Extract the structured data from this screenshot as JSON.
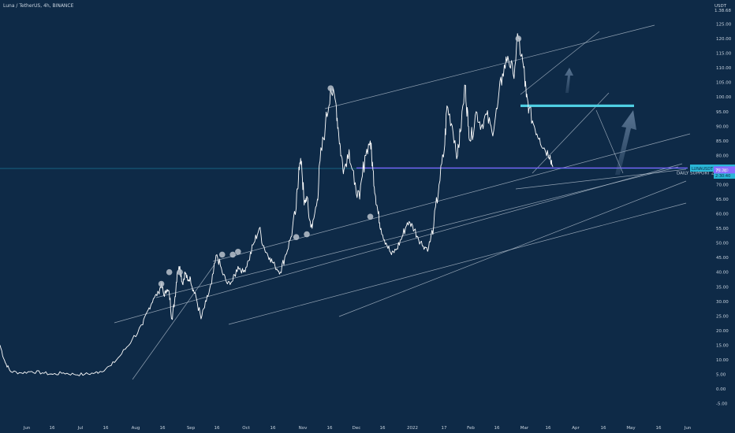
{
  "header": {
    "title": "Luna / TetherUS, 4h, BINANCE"
  },
  "chart_data": {
    "type": "line",
    "symbol": "Luna / TetherUS",
    "interval": "4h",
    "exchange": "BINANCE",
    "y_axis": {
      "unit": "USDT",
      "top_label": "1.38.68",
      "ticks": [
        -5,
        0,
        5,
        10,
        15,
        20,
        25,
        30,
        35,
        40,
        45,
        50,
        55,
        60,
        65,
        70,
        75,
        80,
        85,
        90,
        95,
        100,
        105,
        110,
        115,
        120,
        125
      ],
      "ylim": [
        -7,
        130
      ]
    },
    "x_axis": {
      "tick_labels": [
        "Jun",
        "16",
        "Jul",
        "16",
        "Aug",
        "16",
        "Sep",
        "16",
        "Oct",
        "16",
        "Nov",
        "16",
        "Dec",
        "16",
        "2022",
        "17",
        "Feb",
        "16",
        "Mar",
        "16",
        "Apr",
        "16",
        "May",
        "16",
        "Jun"
      ]
    },
    "price_path": [
      [
        0,
        15
      ],
      [
        2,
        9
      ],
      [
        4,
        6
      ],
      [
        8,
        5.5
      ],
      [
        12,
        6
      ],
      [
        16,
        5.5
      ],
      [
        20,
        5
      ],
      [
        24,
        5.5
      ],
      [
        28,
        5
      ],
      [
        32,
        5
      ],
      [
        36,
        5.5
      ],
      [
        38,
        6
      ],
      [
        42,
        8
      ],
      [
        46,
        12
      ],
      [
        50,
        17
      ],
      [
        54,
        22
      ],
      [
        56,
        27
      ],
      [
        58,
        31
      ],
      [
        60,
        33
      ],
      [
        61,
        36
      ],
      [
        62,
        32
      ],
      [
        63,
        34
      ],
      [
        64,
        33
      ],
      [
        65,
        24
      ],
      [
        66,
        30
      ],
      [
        67,
        40
      ],
      [
        68,
        42
      ],
      [
        69,
        36
      ],
      [
        70,
        40
      ],
      [
        71,
        37
      ],
      [
        72,
        38
      ],
      [
        73,
        34
      ],
      [
        74,
        32
      ],
      [
        76,
        24
      ],
      [
        78,
        30
      ],
      [
        80,
        36
      ],
      [
        82,
        46
      ],
      [
        84,
        40
      ],
      [
        86,
        36
      ],
      [
        88,
        37
      ],
      [
        90,
        42
      ],
      [
        92,
        40
      ],
      [
        94,
        44
      ],
      [
        96,
        50
      ],
      [
        98,
        55
      ],
      [
        100,
        48
      ],
      [
        102,
        45
      ],
      [
        104,
        42
      ],
      [
        106,
        40
      ],
      [
        108,
        46
      ],
      [
        110,
        52
      ],
      [
        112,
        62
      ],
      [
        113,
        76
      ],
      [
        114,
        78
      ],
      [
        115,
        63
      ],
      [
        116,
        66
      ],
      [
        117,
        58
      ],
      [
        118,
        55
      ],
      [
        120,
        65
      ],
      [
        121,
        78
      ],
      [
        123,
        90
      ],
      [
        125,
        103
      ],
      [
        127,
        98
      ],
      [
        128,
        88
      ],
      [
        129,
        80
      ],
      [
        130,
        75
      ],
      [
        132,
        82
      ],
      [
        134,
        70
      ],
      [
        136,
        65
      ],
      [
        138,
        80
      ],
      [
        140,
        85
      ],
      [
        141,
        75
      ],
      [
        142,
        66
      ],
      [
        143,
        60
      ],
      [
        144,
        55
      ],
      [
        146,
        50
      ],
      [
        148,
        46
      ],
      [
        150,
        48
      ],
      [
        152,
        52
      ],
      [
        154,
        57
      ],
      [
        156,
        56
      ],
      [
        158,
        52
      ],
      [
        160,
        49
      ],
      [
        162,
        48
      ],
      [
        164,
        56
      ],
      [
        166,
        70
      ],
      [
        168,
        82
      ],
      [
        169,
        97
      ],
      [
        171,
        90
      ],
      [
        173,
        80
      ],
      [
        174,
        88
      ],
      [
        176,
        104
      ],
      [
        177,
        90
      ],
      [
        178,
        85
      ],
      [
        180,
        95
      ],
      [
        182,
        90
      ],
      [
        184,
        94
      ],
      [
        186,
        88
      ],
      [
        188,
        96
      ],
      [
        190,
        108
      ],
      [
        192,
        114
      ],
      [
        194,
        108
      ],
      [
        196,
        120
      ],
      [
        198,
        110
      ],
      [
        199,
        100
      ],
      [
        200,
        96
      ],
      [
        202,
        90
      ],
      [
        204,
        86
      ],
      [
        206,
        82
      ],
      [
        208,
        80
      ],
      [
        209,
        76
      ]
    ],
    "peaks_marked": [
      [
        61,
        36
      ],
      [
        64,
        40
      ],
      [
        68,
        40
      ],
      [
        84,
        46
      ],
      [
        88,
        46
      ],
      [
        90,
        47
      ],
      [
        112,
        52
      ],
      [
        116,
        53
      ],
      [
        125,
        103
      ],
      [
        140,
        59
      ],
      [
        196,
        120
      ]
    ],
    "annotations": {
      "current_price_label": "LUNAUSDT",
      "current_price": "77.38",
      "secondary_value": "2:30:40",
      "support_price": "75.70",
      "support_label": "DAILY SUPPORT ZONE",
      "resistance_level": 97
    }
  },
  "colors": {
    "background": "#0e2a47",
    "price_line": "#ffffff",
    "trendline": "#c8d3df",
    "support_line": "#7b61ff",
    "support_badge": "#8a6bff",
    "price_badge": "#29b6d6",
    "resistance_zone": "#4fd0e4",
    "arrow": "#6d88a6",
    "marker": "#b9c2cc"
  }
}
